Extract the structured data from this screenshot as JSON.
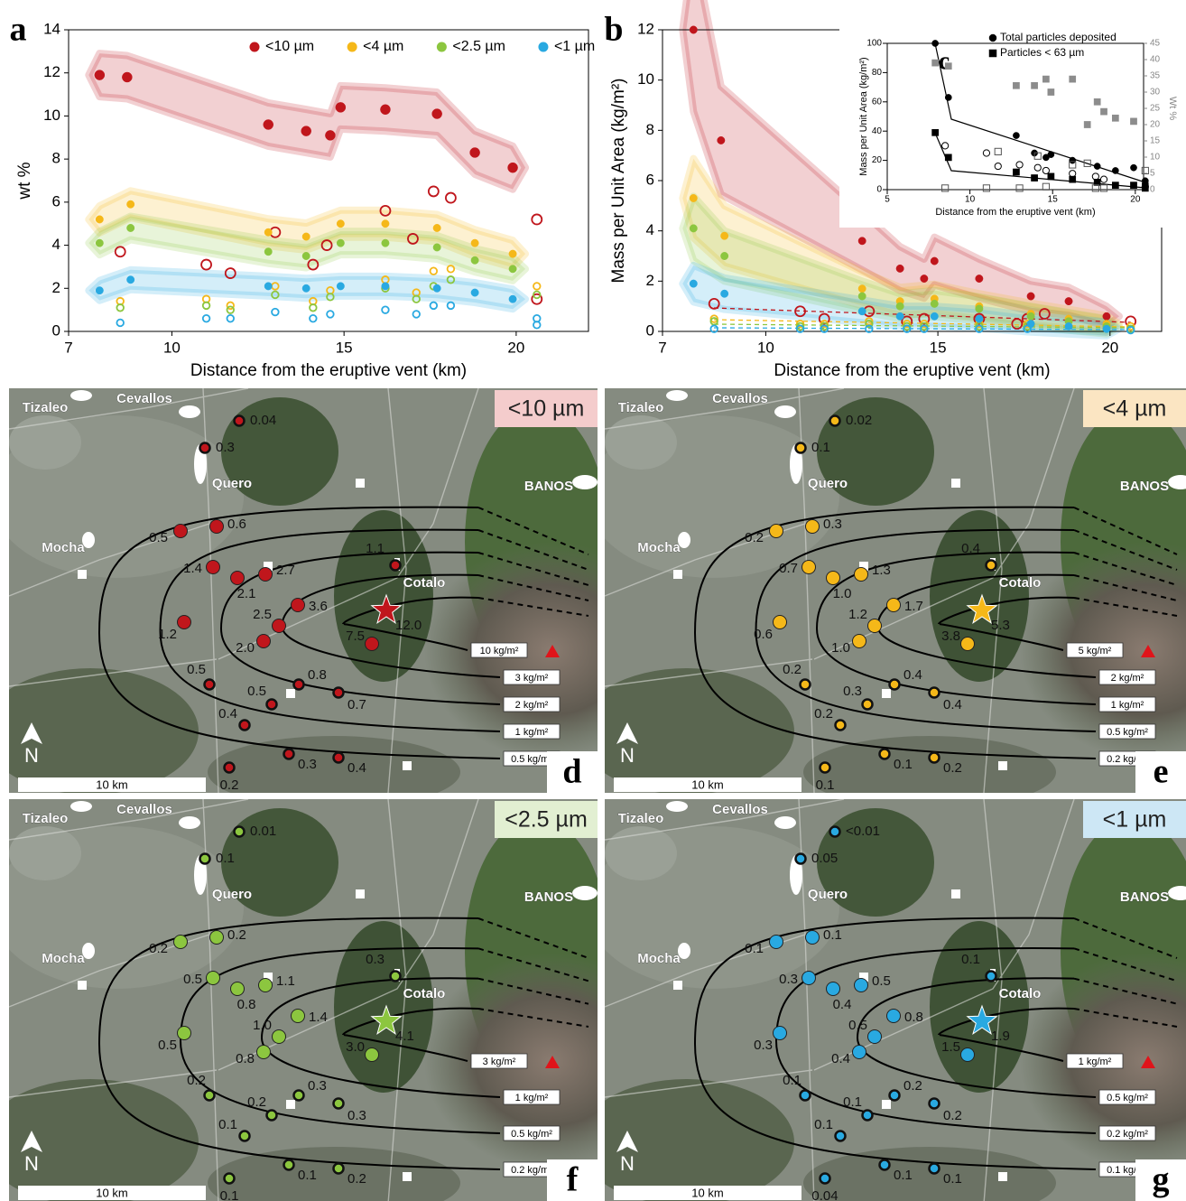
{
  "chart_data": [
    {
      "type": "scatter",
      "panel": "a",
      "x_label": "Distance from the eruptive vent (km)",
      "y_label": "wt %",
      "xlim": [
        7,
        22.1
      ],
      "ylim": [
        0,
        14
      ],
      "xticks": [
        7,
        10,
        15,
        20
      ],
      "yticks": [
        0,
        2,
        4,
        6,
        8,
        10,
        12,
        14
      ],
      "legend": "top",
      "series": [
        {
          "name": "<10 µm",
          "color": "#c0161c",
          "x": [
            7.9,
            8.7,
            12.8,
            13.9,
            14.6,
            14.9,
            16.2,
            17.7,
            18.8,
            19.9
          ],
          "values": [
            11.9,
            11.8,
            9.6,
            9.3,
            9.1,
            10.4,
            10.3,
            10.1,
            8.3,
            7.6
          ],
          "x_open": [
            8.5,
            11,
            11.7,
            13,
            14.1,
            14.5,
            16.2,
            17,
            17.6,
            18.1,
            20.6,
            20.6
          ],
          "values_open": [
            3.7,
            3.1,
            2.7,
            4.6,
            3.1,
            4.0,
            5.6,
            4.3,
            6.5,
            6.2,
            5.2,
            1.5
          ]
        },
        {
          "name": "<4 µm",
          "color": "#f5b819",
          "x": [
            7.9,
            8.8,
            12.8,
            13.9,
            14.9,
            16.2,
            17.7,
            18.8,
            19.9
          ],
          "values": [
            5.2,
            5.9,
            4.6,
            4.4,
            5.0,
            5.0,
            4.8,
            4.1,
            3.6
          ],
          "x_open": [
            8.5,
            11,
            11.7,
            13,
            14.1,
            14.6,
            16.2,
            17.1,
            17.6,
            18.1,
            20.6
          ],
          "values_open": [
            1.4,
            1.5,
            1.2,
            2.1,
            1.4,
            1.9,
            2.4,
            1.8,
            2.8,
            2.9,
            2.1
          ]
        },
        {
          "name": "<2.5 µm",
          "color": "#8cc63f",
          "x": [
            7.9,
            8.8,
            12.8,
            13.9,
            14.9,
            16.2,
            17.7,
            18.8,
            19.9
          ],
          "values": [
            4.1,
            4.8,
            3.7,
            3.5,
            4.1,
            4.1,
            3.9,
            3.3,
            2.9
          ],
          "x_open": [
            8.5,
            11,
            11.7,
            13,
            14.1,
            14.6,
            16.2,
            17.1,
            17.6,
            18.1,
            20.6
          ],
          "values_open": [
            1.1,
            1.2,
            1.0,
            1.7,
            1.1,
            1.6,
            2.0,
            1.5,
            2.1,
            2.4,
            1.7
          ]
        },
        {
          "name": "<1 µm",
          "color": "#29a9e1",
          "x": [
            7.9,
            8.8,
            12.8,
            13.9,
            14.9,
            16.2,
            17.7,
            18.8,
            19.9
          ],
          "values": [
            1.9,
            2.4,
            2.1,
            2.0,
            2.1,
            2.1,
            2.0,
            1.8,
            1.5
          ],
          "x_open": [
            8.5,
            11,
            11.7,
            13,
            14.1,
            14.6,
            16.2,
            17.1,
            17.6,
            18.1,
            20.6,
            20.6
          ],
          "values_open": [
            0.4,
            0.6,
            0.6,
            0.9,
            0.6,
            0.8,
            1.0,
            0.8,
            1.2,
            1.2,
            0.6,
            0.3
          ]
        }
      ]
    },
    {
      "type": "scatter",
      "panel": "b",
      "x_label": "Distance from the eruptive vent (km)",
      "y_label": "Mass per Unit Area (kg/m²)",
      "xlim": [
        7,
        21.5
      ],
      "ylim": [
        0,
        12
      ],
      "xticks": [
        7,
        10,
        15,
        20
      ],
      "yticks": [
        0,
        2,
        4,
        6,
        8,
        10,
        12
      ],
      "series": [
        {
          "color": "#c0161c",
          "x": [
            7.9,
            8.7,
            12.8,
            13.9,
            14.6,
            14.9,
            16.2,
            17.7,
            18.8,
            19.9
          ],
          "values": [
            12,
            7.6,
            3.6,
            2.5,
            2.1,
            2.8,
            2.1,
            1.4,
            1.2,
            0.6
          ],
          "x_open": [
            8.5,
            11,
            11.7,
            13,
            14.1,
            14.6,
            16.2,
            17.3,
            17.6,
            18.1,
            20.6
          ],
          "values_open": [
            1.1,
            0.8,
            0.5,
            0.8,
            0.4,
            0.5,
            0.5,
            0.3,
            0.5,
            0.7,
            0.4
          ]
        },
        {
          "color": "#f5b819",
          "x": [
            7.9,
            8.8,
            12.8,
            13.9,
            14.9,
            16.2,
            17.7,
            18.8,
            19.9
          ],
          "values": [
            5.3,
            3.8,
            1.7,
            1.2,
            1.3,
            1.0,
            0.7,
            0.5,
            0.3
          ],
          "x_open": [
            8.5,
            11,
            11.7,
            13,
            14.1,
            14.6,
            16.2,
            17.6,
            20.6
          ],
          "values_open": [
            0.5,
            0.3,
            0.3,
            0.4,
            0.3,
            0.3,
            0.3,
            0.3,
            0.2
          ]
        },
        {
          "color": "#8cc63f",
          "x": [
            7.9,
            8.8,
            12.8,
            13.9,
            14.9,
            16.2,
            17.7,
            18.8,
            19.9
          ],
          "values": [
            4.1,
            3.0,
            1.4,
            1.0,
            1.1,
            0.9,
            0.6,
            0.4,
            0.2
          ],
          "x_open": [
            8.5,
            11,
            11.7,
            13,
            14.1,
            14.6,
            16.2,
            17.6,
            20.6
          ],
          "values_open": [
            0.4,
            0.2,
            0.2,
            0.3,
            0.2,
            0.2,
            0.2,
            0.2,
            0.1
          ]
        },
        {
          "color": "#29a9e1",
          "x": [
            7.9,
            8.8,
            12.8,
            13.9,
            14.9,
            16.2,
            17.7,
            18.8,
            19.9
          ],
          "values": [
            1.9,
            1.5,
            0.8,
            0.6,
            0.6,
            0.5,
            0.3,
            0.2,
            0.1
          ],
          "x_open": [
            8.5,
            11,
            11.7,
            13,
            14.1,
            14.6,
            16.2,
            17.6,
            20.6
          ],
          "values_open": [
            0.1,
            0.1,
            0.1,
            0.1,
            0.1,
            0.1,
            0.1,
            0.1,
            0.05
          ]
        }
      ]
    },
    {
      "type": "scatter",
      "panel": "c",
      "x_label": "Distance from the eruptive vent (km)",
      "y_label": "Mass per Unit Area (kg/m²)",
      "y2_label": "Wt %",
      "xlim": [
        5,
        20.5
      ],
      "ylim": [
        0,
        100
      ],
      "y2lim": [
        0,
        45
      ],
      "xticks": [
        5,
        10,
        15,
        20
      ],
      "yticks": [
        0,
        20,
        40,
        60,
        80,
        100
      ],
      "y2ticks": [
        0,
        5,
        10,
        15,
        20,
        25,
        30,
        35,
        40,
        45
      ],
      "legend": "top",
      "series": [
        {
          "name": "Total particles deposited",
          "color": "#000000",
          "marker": "circle",
          "x": [
            7.9,
            8.7,
            12.8,
            13.9,
            14.6,
            14.9,
            16.2,
            17.7,
            18.8,
            19.9,
            20.6,
            20.6
          ],
          "values": [
            100,
            63,
            37,
            25,
            22,
            24,
            20,
            16,
            13,
            15,
            6,
            4
          ]
        },
        {
          "name": "Particles < 63 µm",
          "color": "#000000",
          "marker": "square",
          "x": [
            7.9,
            8.7,
            12.8,
            13.9,
            14.9,
            16.2,
            17.7,
            18.8,
            19.9,
            20.6
          ],
          "values": [
            39,
            22,
            12,
            8,
            9,
            7,
            5,
            3,
            3,
            1
          ]
        },
        {
          "color": "#8c8c8c",
          "marker": "square",
          "axis": "y2",
          "x": [
            7.9,
            8.7,
            12.8,
            13.9,
            14.6,
            14.9,
            16.2,
            17.1,
            17.7,
            18.1,
            18.8,
            19.9
          ],
          "values": [
            39,
            38,
            32,
            32,
            34,
            30,
            34,
            20,
            27,
            24,
            22,
            21
          ]
        },
        {
          "color": "#000000",
          "marker": "open-circle",
          "x": [
            8.5,
            11,
            11.7,
            13,
            14.1,
            14.6,
            16.2,
            17.6,
            18.1,
            20.6
          ],
          "values": [
            30,
            25,
            16,
            17,
            15,
            13,
            11,
            9,
            7,
            2
          ]
        },
        {
          "color": "#555555",
          "marker": "open-square",
          "x": [
            8.5,
            11,
            11.7,
            13,
            14.1,
            14.6,
            16.2,
            17.1,
            17.6,
            18.1,
            20.6
          ],
          "values": [
            1,
            1,
            26,
            1,
            23,
            2,
            17,
            18,
            1,
            1,
            13
          ]
        }
      ]
    }
  ],
  "maps": [
    {
      "panel": "d",
      "fraction": "<10 µm",
      "color": "#c0161c",
      "label_background": "#f4cccc",
      "points": [
        "0.04",
        "0.3",
        "0.6",
        "0.5",
        "1.1",
        "1.4",
        "2.1",
        "2.7",
        "3.6",
        "2.5",
        "1.2",
        "2.0",
        "7.5",
        "0.5",
        "0.8",
        "0.5",
        "0.7",
        "0.4",
        "0.3",
        "0.4",
        "0.2"
      ],
      "vent_value": "12.0",
      "isopleths": [
        "10 kg/m²",
        "3 kg/m²",
        "2 kg/m²",
        "1 kg/m²",
        "0.5 kg/m²"
      ]
    },
    {
      "panel": "e",
      "fraction": "<4 µm",
      "color": "#f5b819",
      "label_background": "#fbe5c2",
      "points": [
        "0.02",
        "0.1",
        "0.3",
        "0.2",
        "0.4",
        "0.7",
        "1.0",
        "1.3",
        "1.7",
        "1.2",
        "0.6",
        "1.0",
        "3.8",
        "0.2",
        "0.4",
        "0.3",
        "0.4",
        "0.2",
        "0.1",
        "0.2",
        "0.1"
      ],
      "vent_value": "5.3",
      "isopleths": [
        "5 kg/m²",
        "2 kg/m²",
        "1 kg/m²",
        "0.5 kg/m²",
        "0.2 kg/m²"
      ]
    },
    {
      "panel": "f",
      "fraction": "<2.5 µm",
      "color": "#8cc63f",
      "label_background": "#e2efd2",
      "points": [
        "0.01",
        "0.1",
        "0.2",
        "0.2",
        "0.3",
        "0.5",
        "0.8",
        "1.1",
        "1.4",
        "1.0",
        "0.5",
        "0.8",
        "3.0",
        "0.2",
        "0.3",
        "0.2",
        "0.3",
        "0.1",
        "0.1",
        "0.2",
        "0.1"
      ],
      "vent_value": "4.1",
      "isopleths": [
        "3 kg/m²",
        "1 kg/m²",
        "0.5 kg/m²",
        "0.2 kg/m²"
      ]
    },
    {
      "panel": "g",
      "fraction": "<1 µm",
      "color": "#29a9e1",
      "label_background": "#cde7f5",
      "points": [
        "<0.01",
        "0.05",
        "0.1",
        "0.1",
        "0.1",
        "0.3",
        "0.4",
        "0.5",
        "0.8",
        "0.5",
        "0.3",
        "0.4",
        "1.5",
        "0.1",
        "0.2",
        "0.1",
        "0.2",
        "0.1",
        "0.1",
        "0.1",
        "0.04"
      ],
      "vent_value": "1.9",
      "isopleths": [
        "1 kg/m²",
        "0.5 kg/m²",
        "0.2 kg/m²",
        "0.1 kg/m²"
      ]
    }
  ],
  "map_labels": {
    "towns": [
      "Tizaleo",
      "Cevallos",
      "Quero",
      "Mocha",
      "BANOS",
      "Cotalo"
    ],
    "scale": "10 km",
    "north": "N"
  }
}
